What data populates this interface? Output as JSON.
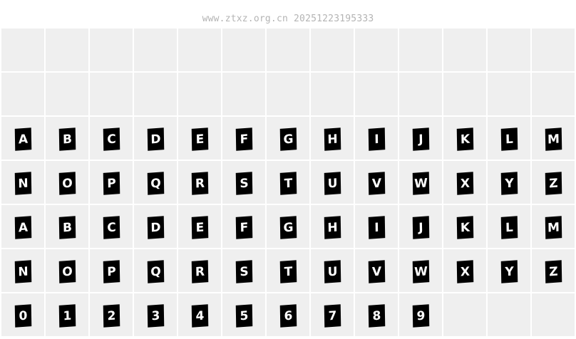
{
  "watermark": "www.ztxz.org.cn 20251223195333",
  "rows": [
    [
      "",
      "",
      "",
      "",
      "",
      "",
      "",
      "",
      "",
      "",
      "",
      "",
      ""
    ],
    [
      "",
      "",
      "",
      "",
      "",
      "",
      "",
      "",
      "",
      "",
      "",
      "",
      ""
    ],
    [
      "A",
      "B",
      "C",
      "D",
      "E",
      "F",
      "G",
      "H",
      "I",
      "J",
      "K",
      "L",
      "M"
    ],
    [
      "N",
      "O",
      "P",
      "Q",
      "R",
      "S",
      "T",
      "U",
      "V",
      "W",
      "X",
      "Y",
      "Z"
    ],
    [
      "A",
      "B",
      "C",
      "D",
      "E",
      "F",
      "G",
      "H",
      "I",
      "J",
      "K",
      "L",
      "M"
    ],
    [
      "N",
      "O",
      "P",
      "Q",
      "R",
      "S",
      "T",
      "U",
      "V",
      "W",
      "X",
      "Y",
      "Z"
    ],
    [
      "0",
      "1",
      "2",
      "3",
      "4",
      "5",
      "6",
      "7",
      "8",
      "9",
      "",
      "",
      ""
    ]
  ],
  "colors": {
    "cell_bg": "#efefef",
    "grid_line": "#ffffff",
    "glyph_box": "#000000",
    "glyph_text": "#ffffff"
  }
}
